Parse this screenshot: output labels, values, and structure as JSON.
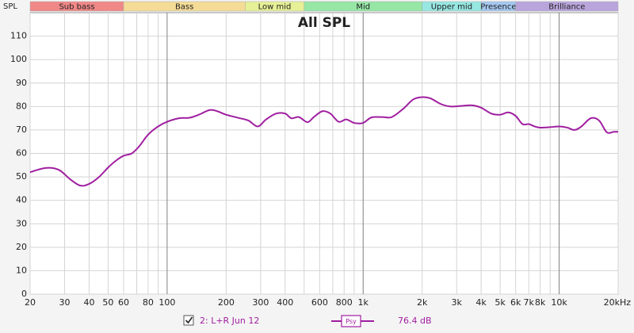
{
  "chart_data": {
    "type": "line",
    "title": "All SPL",
    "ylabel": "SPL",
    "xscale": "log",
    "xlim": [
      20,
      20000
    ],
    "ylim": [
      0,
      120
    ],
    "yticks": [
      0,
      10,
      20,
      30,
      40,
      50,
      60,
      70,
      80,
      90,
      100,
      110
    ],
    "xticks": [
      20,
      30,
      40,
      50,
      60,
      80,
      100,
      200,
      300,
      400,
      600,
      800,
      {
        "value": 1000,
        "label": "1k"
      },
      {
        "value": 2000,
        "label": "2k"
      },
      {
        "value": 3000,
        "label": "3k"
      },
      {
        "value": 4000,
        "label": "4k"
      },
      {
        "value": 5000,
        "label": "5k"
      },
      {
        "value": 6000,
        "label": "6k"
      },
      {
        "value": 7000,
        "label": "7k"
      },
      {
        "value": 8000,
        "label": "8k"
      },
      {
        "value": 10000,
        "label": "10k"
      },
      {
        "value": 20000,
        "label": "20kHz"
      }
    ],
    "xminor": [
      70,
      90,
      500,
      700,
      900,
      9000
    ],
    "grid": true,
    "bands": [
      {
        "name": "Sub bass",
        "from": 20,
        "to": 60,
        "color": "#f08888"
      },
      {
        "name": "Bass",
        "from": 60,
        "to": 250,
        "color": "#f5dc96"
      },
      {
        "name": "Low mid",
        "from": 250,
        "to": 500,
        "color": "#e6f096"
      },
      {
        "name": "Mid",
        "from": 500,
        "to": 2000,
        "color": "#96e6a5"
      },
      {
        "name": "Upper mid",
        "from": 2000,
        "to": 4000,
        "color": "#96e6e1"
      },
      {
        "name": "Presence",
        "from": 4000,
        "to": 6000,
        "color": "#a5c8f0"
      },
      {
        "name": "Brilliance",
        "from": 6000,
        "to": 20000,
        "color": "#b9a5dc"
      }
    ],
    "x": [
      20,
      24,
      28,
      32,
      36,
      40,
      45,
      50,
      55,
      60,
      66,
      72,
      80,
      90,
      100,
      115,
      130,
      145,
      165,
      180,
      200,
      230,
      260,
      290,
      320,
      360,
      400,
      430,
      470,
      520,
      560,
      620,
      680,
      750,
      820,
      900,
      1000,
      1100,
      1250,
      1400,
      1600,
      1800,
      2000,
      2200,
      2500,
      2800,
      3200,
      3600,
      4000,
      4500,
      5000,
      5500,
      6000,
      6500,
      7000,
      7500,
      8000,
      9000,
      10000,
      11000,
      12000,
      13000,
      14500,
      16000,
      17500,
      19000,
      20000
    ],
    "series": [
      {
        "name": "2: L+R Jun 12",
        "color": "#a01ea0",
        "smoothing": "Psy",
        "readout": "76.4 dB",
        "values": [
          52,
          53.8,
          53,
          49,
          46.3,
          47,
          50,
          54,
          57,
          59,
          60,
          63,
          68,
          71.5,
          73.5,
          75,
          75.2,
          76.5,
          78.5,
          78,
          76.5,
          75.2,
          74,
          71.5,
          74.5,
          77,
          77,
          75,
          75.5,
          73.3,
          75.5,
          78,
          77,
          73.5,
          74.5,
          73,
          73,
          75.3,
          75.5,
          75.5,
          79,
          83,
          84,
          83.5,
          81,
          80,
          80.3,
          80.5,
          79.5,
          77,
          76.5,
          77.5,
          76,
          72.5,
          72.5,
          71.5,
          71,
          71.2,
          71.5,
          71,
          70,
          71.5,
          75,
          74,
          69,
          69.2,
          69.2
        ]
      }
    ]
  }
}
